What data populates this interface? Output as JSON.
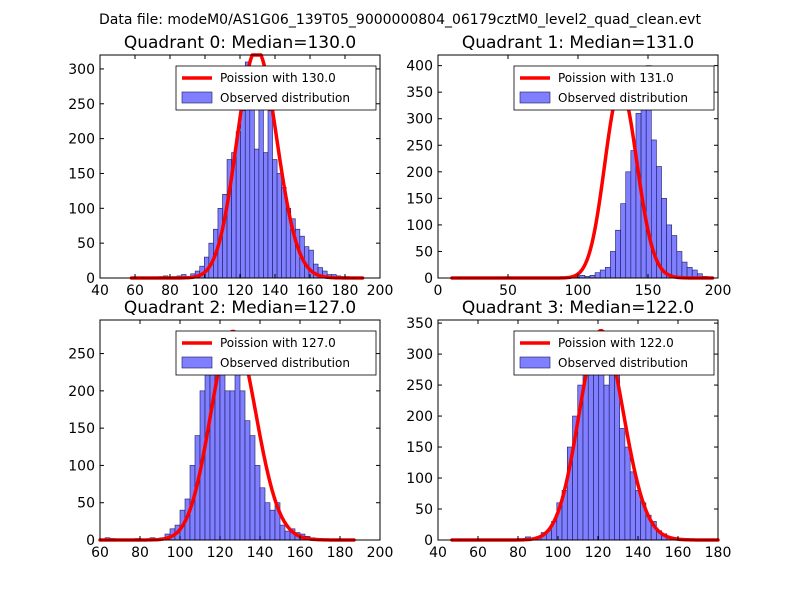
{
  "suptitle": "Data file: modeM0/AS1G06_139T05_9000000804_06179cztM0_level2_quad_clean.evt",
  "colors": {
    "bar": "#7f7fff",
    "bar_edge": "#1a1a60",
    "curve": "#ff0000"
  },
  "chart_data": [
    {
      "type": "bar",
      "title": "Quadrant 0: Median=130.0",
      "legend": {
        "curve_label": "Poission with 130.0",
        "bar_label": "Observed distribution",
        "position": "top-right"
      },
      "xlim": [
        40,
        200
      ],
      "ylim": [
        0,
        320
      ],
      "xticks": [
        40,
        60,
        80,
        100,
        120,
        140,
        160,
        180,
        200
      ],
      "yticks": [
        0,
        50,
        100,
        150,
        200,
        250,
        300
      ],
      "bin_start": 58,
      "bin_width": 2.6,
      "mean": 130,
      "values": [
        1,
        0,
        1,
        0,
        1,
        0,
        2,
        3,
        1,
        2,
        3,
        5,
        2,
        6,
        10,
        17,
        30,
        50,
        70,
        100,
        120,
        170,
        180,
        210,
        240,
        310,
        300,
        185,
        250,
        180,
        240,
        170,
        150,
        130,
        100,
        85,
        70,
        60,
        45,
        40,
        20,
        15,
        10,
        5,
        5,
        3,
        2,
        2,
        1,
        0,
        1
      ]
    },
    {
      "type": "bar",
      "title": "Quadrant 1: Median=131.0",
      "legend": {
        "curve_label": "Poission with 131.0",
        "bar_label": "Observed distribution",
        "position": "top-right"
      },
      "xlim": [
        0,
        200
      ],
      "ylim": [
        0,
        420
      ],
      "xticks": [
        0,
        50,
        100,
        150,
        200
      ],
      "yticks": [
        0,
        50,
        100,
        150,
        200,
        250,
        300,
        350,
        400
      ],
      "bin_start": 10,
      "bin_width": 3.65,
      "mean": 131,
      "values": [
        1,
        0,
        0,
        0,
        0,
        0,
        0,
        1,
        0,
        0,
        0,
        0,
        1,
        0,
        0,
        0,
        0,
        0,
        0,
        1,
        0,
        0,
        0,
        0,
        2,
        5,
        3,
        5,
        10,
        15,
        20,
        50,
        90,
        140,
        200,
        240,
        310,
        390,
        400,
        260,
        210,
        150,
        100,
        80,
        50,
        30,
        20,
        15,
        8,
        3,
        1
      ]
    },
    {
      "type": "bar",
      "title": "Quadrant 2: Median=127.0",
      "legend": {
        "curve_label": "Poission with 127.0",
        "bar_label": "Observed distribution",
        "position": "top-right"
      },
      "xlim": [
        60,
        200
      ],
      "ylim": [
        0,
        295
      ],
      "xticks": [
        60,
        80,
        100,
        120,
        140,
        160,
        180,
        200
      ],
      "yticks": [
        0,
        50,
        100,
        150,
        200,
        250
      ],
      "bin_start": 60,
      "bin_width": 2.5,
      "mean": 127,
      "values": [
        1,
        3,
        2,
        0,
        0,
        0,
        1,
        2,
        1,
        0,
        3,
        1,
        3,
        8,
        15,
        20,
        40,
        55,
        100,
        140,
        200,
        230,
        260,
        280,
        230,
        200,
        200,
        280,
        200,
        160,
        140,
        100,
        70,
        50,
        40,
        50,
        20,
        12,
        15,
        10,
        8,
        5,
        3,
        1,
        1,
        1,
        0,
        0,
        0,
        0,
        1
      ]
    },
    {
      "type": "bar",
      "title": "Quadrant 3: Median=122.0",
      "legend": {
        "curve_label": "Poission with 122.0",
        "bar_label": "Observed distribution",
        "position": "top-right"
      },
      "xlim": [
        40,
        180
      ],
      "ylim": [
        0,
        355
      ],
      "xticks": [
        40,
        60,
        80,
        100,
        120,
        140,
        160,
        180
      ],
      "yticks": [
        0,
        50,
        100,
        150,
        200,
        250,
        300,
        350
      ],
      "bin_start": 47,
      "bin_width": 2.62,
      "mean": 122,
      "values": [
        1,
        0,
        0,
        0,
        0,
        0,
        0,
        0,
        0,
        1,
        0,
        0,
        0,
        1,
        5,
        2,
        5,
        12,
        15,
        30,
        60,
        80,
        150,
        200,
        250,
        280,
        300,
        330,
        300,
        250,
        330,
        280,
        180,
        150,
        110,
        80,
        60,
        40,
        30,
        15,
        10,
        5,
        3,
        2,
        1,
        1,
        0,
        0,
        0,
        0,
        1
      ]
    }
  ]
}
